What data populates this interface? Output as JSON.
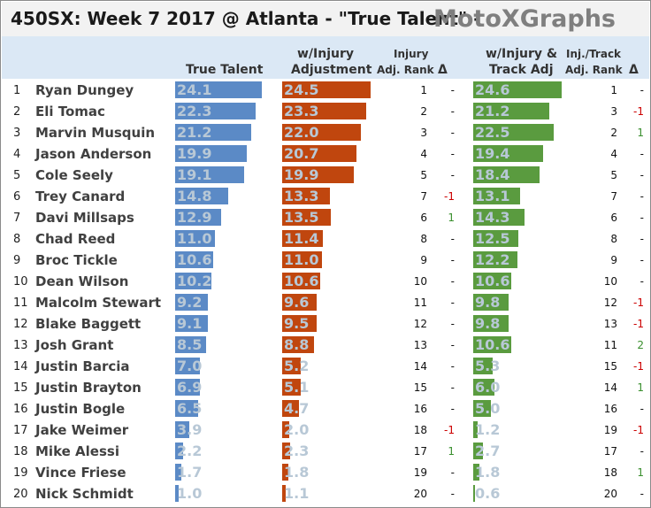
{
  "title": "450SX: Week 7 2017 @ Atlanta - \"True Talent\" -",
  "brand": "MotoXGraphs",
  "colors": {
    "true_talent": "#5b8ac6",
    "injury_adj": "#c0460e",
    "track_adj": "#5a9b3f"
  },
  "headers": {
    "true_talent": "True Talent",
    "injury_adj_line1": "w/Injury",
    "injury_adj_line2": "Adjustment",
    "injury_rank_line1": "Injury",
    "injury_rank_line2": "Adj. Rank",
    "delta1": "Δ",
    "track_adj_line1": "w/Injury &",
    "track_adj_line2": "Track Adj",
    "track_rank_line1": "Inj./Track",
    "track_rank_line2": "Adj. Rank",
    "delta2": "Δ"
  },
  "chart_data": {
    "type": "table",
    "max_value": 24.6,
    "rows": [
      {
        "rank": "1",
        "name": "Ryan Dungey",
        "tt": "24.1",
        "inj": "24.5",
        "inj_rank": "1",
        "d1": "-",
        "trk": "24.6",
        "trk_rank": "1",
        "d2": "-"
      },
      {
        "rank": "2",
        "name": "Eli Tomac",
        "tt": "22.3",
        "inj": "23.3",
        "inj_rank": "2",
        "d1": "-",
        "trk": "21.2",
        "trk_rank": "3",
        "d2": "-1"
      },
      {
        "rank": "3",
        "name": "Marvin Musquin",
        "tt": "21.2",
        "inj": "22.0",
        "inj_rank": "3",
        "d1": "-",
        "trk": "22.5",
        "trk_rank": "2",
        "d2": "1"
      },
      {
        "rank": "4",
        "name": "Jason Anderson",
        "tt": "19.9",
        "inj": "20.7",
        "inj_rank": "4",
        "d1": "-",
        "trk": "19.4",
        "trk_rank": "4",
        "d2": "-"
      },
      {
        "rank": "5",
        "name": "Cole Seely",
        "tt": "19.1",
        "inj": "19.9",
        "inj_rank": "5",
        "d1": "-",
        "trk": "18.4",
        "trk_rank": "5",
        "d2": "-"
      },
      {
        "rank": "6",
        "name": "Trey Canard",
        "tt": "14.8",
        "inj": "13.3",
        "inj_rank": "7",
        "d1": "-1",
        "trk": "13.1",
        "trk_rank": "7",
        "d2": "-"
      },
      {
        "rank": "7",
        "name": "Davi Millsaps",
        "tt": "12.9",
        "inj": "13.5",
        "inj_rank": "6",
        "d1": "1",
        "trk": "14.3",
        "trk_rank": "6",
        "d2": "-"
      },
      {
        "rank": "8",
        "name": "Chad Reed",
        "tt": "11.0",
        "inj": "11.4",
        "inj_rank": "8",
        "d1": "-",
        "trk": "12.5",
        "trk_rank": "8",
        "d2": "-"
      },
      {
        "rank": "9",
        "name": "Broc Tickle",
        "tt": "10.6",
        "inj": "11.0",
        "inj_rank": "9",
        "d1": "-",
        "trk": "12.2",
        "trk_rank": "9",
        "d2": "-"
      },
      {
        "rank": "10",
        "name": "Dean Wilson",
        "tt": "10.2",
        "inj": "10.6",
        "inj_rank": "10",
        "d1": "-",
        "trk": "10.6",
        "trk_rank": "10",
        "d2": "-"
      },
      {
        "rank": "11",
        "name": "Malcolm Stewart",
        "tt": "9.2",
        "inj": "9.6",
        "inj_rank": "11",
        "d1": "-",
        "trk": "9.8",
        "trk_rank": "12",
        "d2": "-1"
      },
      {
        "rank": "12",
        "name": "Blake Baggett",
        "tt": "9.1",
        "inj": "9.5",
        "inj_rank": "12",
        "d1": "-",
        "trk": "9.8",
        "trk_rank": "13",
        "d2": "-1"
      },
      {
        "rank": "13",
        "name": "Josh Grant",
        "tt": "8.5",
        "inj": "8.8",
        "inj_rank": "13",
        "d1": "-",
        "trk": "10.6",
        "trk_rank": "11",
        "d2": "2"
      },
      {
        "rank": "14",
        "name": "Justin Barcia",
        "tt": "7.0",
        "inj": "5.2",
        "inj_rank": "14",
        "d1": "-",
        "trk": "5.3",
        "trk_rank": "15",
        "d2": "-1"
      },
      {
        "rank": "15",
        "name": "Justin Brayton",
        "tt": "6.9",
        "inj": "5.1",
        "inj_rank": "15",
        "d1": "-",
        "trk": "6.0",
        "trk_rank": "14",
        "d2": "1"
      },
      {
        "rank": "16",
        "name": "Justin Bogle",
        "tt": "6.5",
        "inj": "4.7",
        "inj_rank": "16",
        "d1": "-",
        "trk": "5.0",
        "trk_rank": "16",
        "d2": "-"
      },
      {
        "rank": "17",
        "name": "Jake Weimer",
        "tt": "3.9",
        "inj": "2.0",
        "inj_rank": "18",
        "d1": "-1",
        "trk": "1.2",
        "trk_rank": "19",
        "d2": "-1"
      },
      {
        "rank": "18",
        "name": "Mike Alessi",
        "tt": "2.2",
        "inj": "2.3",
        "inj_rank": "17",
        "d1": "1",
        "trk": "2.7",
        "trk_rank": "17",
        "d2": "-"
      },
      {
        "rank": "19",
        "name": "Vince Friese",
        "tt": "1.7",
        "inj": "1.8",
        "inj_rank": "19",
        "d1": "-",
        "trk": "1.8",
        "trk_rank": "18",
        "d2": "1"
      },
      {
        "rank": "20",
        "name": "Nick Schmidt",
        "tt": "1.0",
        "inj": "1.1",
        "inj_rank": "20",
        "d1": "-",
        "trk": "0.6",
        "trk_rank": "20",
        "d2": "-"
      }
    ]
  }
}
